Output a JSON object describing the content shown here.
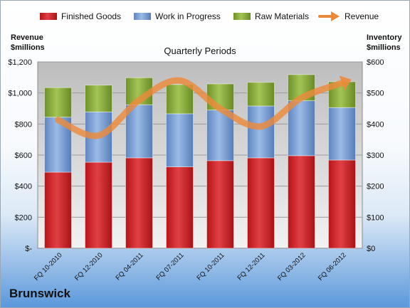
{
  "company": "Brunswick",
  "chart_data": {
    "type": "bar",
    "stacked": true,
    "subtitle": "Quarterly Periods",
    "categories": [
      "FQ 10-2010",
      "FQ 12-2010",
      "FQ 04-2011",
      "FQ 07-2011",
      "FQ 10-2011",
      "FQ 12-2011",
      "FQ 03-2012",
      "FQ 06-2012"
    ],
    "series": [
      {
        "name": "Finished Goods",
        "axis": "right",
        "color": "#d2262a",
        "values": [
          245,
          277,
          291,
          262,
          282,
          291,
          298,
          284
        ]
      },
      {
        "name": "Work in Progress",
        "axis": "right",
        "color": "#7ea2d6",
        "values": [
          177,
          162,
          171,
          171,
          163,
          167,
          177,
          169
        ]
      },
      {
        "name": "Raw Materials",
        "axis": "right",
        "color": "#8cae3e",
        "values": [
          95,
          86,
          87,
          94,
          84,
          76,
          84,
          83
        ]
      }
    ],
    "line_series": [
      {
        "name": "Revenue",
        "axis": "left",
        "color": "#ed8a3a",
        "values": [
          826,
          726,
          953,
          1080,
          898,
          785,
          968,
          1064
        ]
      }
    ],
    "left_axis": {
      "title_lines": [
        "Revenue",
        "$millions"
      ],
      "ylim": [
        0,
        1200
      ],
      "ticks": [
        0,
        200,
        400,
        600,
        800,
        1000,
        1200
      ],
      "tick_labels": [
        "$-",
        "$200",
        "$400",
        "$600",
        "$800",
        "$1,000",
        "$1,200"
      ]
    },
    "right_axis": {
      "title_lines": [
        "Inventory",
        "$millions"
      ],
      "ylim": [
        0,
        600
      ],
      "ticks": [
        0,
        100,
        200,
        300,
        400,
        500,
        600
      ],
      "tick_labels": [
        "$0",
        "$100",
        "$200",
        "$300",
        "$400",
        "$500",
        "$600"
      ]
    },
    "legend_position": "top",
    "grid": true
  }
}
